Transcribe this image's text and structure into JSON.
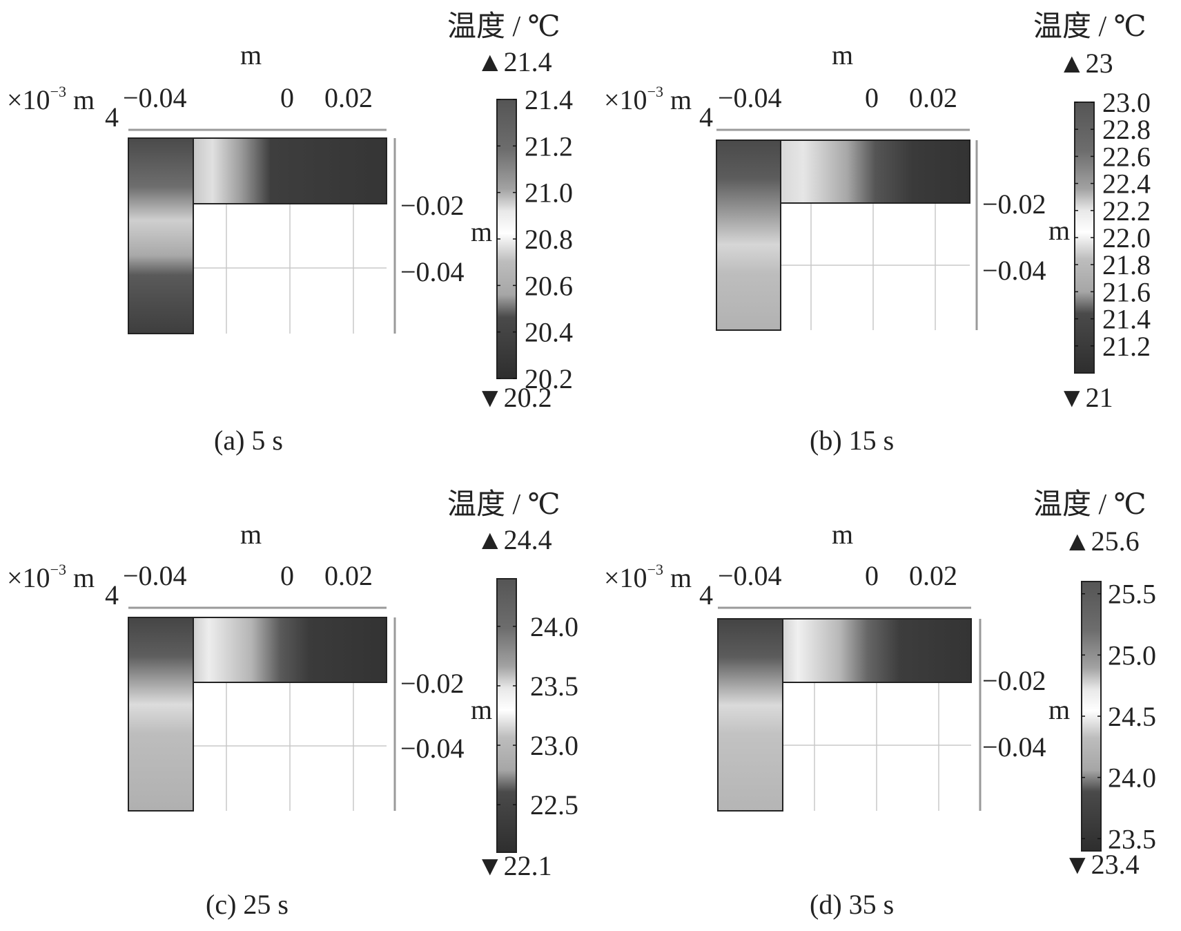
{
  "chart_data": [
    {
      "type": "heatmap",
      "caption": "(a)  5 s",
      "colorbar": {
        "title": "温度 / ℃",
        "max_label": "▲21.4",
        "min_label": "▼20.2",
        "min": 20.2,
        "max": 21.4,
        "ticks": [
          "21.4",
          "21.2",
          "21.0",
          "20.8",
          "20.6",
          "20.4",
          "20.2"
        ]
      },
      "x_axis": {
        "label": "m",
        "multiplier": "×10",
        "exponent": "−3",
        "multiplier_unit": "m",
        "offset": "4",
        "ticks": [
          "−0.04",
          "0",
          "0.02"
        ]
      },
      "y_axis": {
        "label": "m",
        "ticks": [
          "−0.02",
          "−0.04"
        ]
      }
    },
    {
      "type": "heatmap",
      "caption": "(b)  15 s",
      "colorbar": {
        "title": "温度 / ℃",
        "max_label": "▲23",
        "min_label": "▼21",
        "min": 21,
        "max": 23,
        "ticks": [
          "23.0",
          "22.8",
          "22.6",
          "22.4",
          "22.2",
          "22.0",
          "21.8",
          "21.6",
          "21.4",
          "21.2"
        ]
      },
      "x_axis": {
        "label": "m",
        "multiplier": "×10",
        "exponent": "−3",
        "multiplier_unit": "m",
        "offset": "4",
        "ticks": [
          "−0.04",
          "0",
          "0.02"
        ]
      },
      "y_axis": {
        "label": "m",
        "ticks": [
          "−0.02",
          "−0.04"
        ]
      }
    },
    {
      "type": "heatmap",
      "caption": "(c)  25 s",
      "colorbar": {
        "title": "温度 / ℃",
        "max_label": "▲24.4",
        "min_label": "▼22.1",
        "min": 22.1,
        "max": 24.4,
        "ticks": [
          "24.0",
          "23.5",
          "23.0",
          "22.5"
        ]
      },
      "x_axis": {
        "label": "m",
        "multiplier": "×10",
        "exponent": "−3",
        "multiplier_unit": "m",
        "offset": "4",
        "ticks": [
          "−0.04",
          "0",
          "0.02"
        ]
      },
      "y_axis": {
        "label": "m",
        "ticks": [
          "−0.02",
          "−0.04"
        ]
      }
    },
    {
      "type": "heatmap",
      "caption": "(d)  35 s",
      "colorbar": {
        "title": "温度 / ℃",
        "max_label": "▲25.6",
        "min_label": "▼23.4",
        "min": 23.4,
        "max": 25.6,
        "ticks": [
          "25.5",
          "25.0",
          "24.5",
          "24.0",
          "23.5"
        ]
      },
      "x_axis": {
        "label": "m",
        "multiplier": "×10",
        "exponent": "−3",
        "multiplier_unit": "m",
        "offset": "4",
        "ticks": [
          "−0.04",
          "0",
          "0.02"
        ]
      },
      "y_axis": {
        "label": "m",
        "ticks": [
          "−0.02",
          "−0.04"
        ]
      }
    }
  ]
}
